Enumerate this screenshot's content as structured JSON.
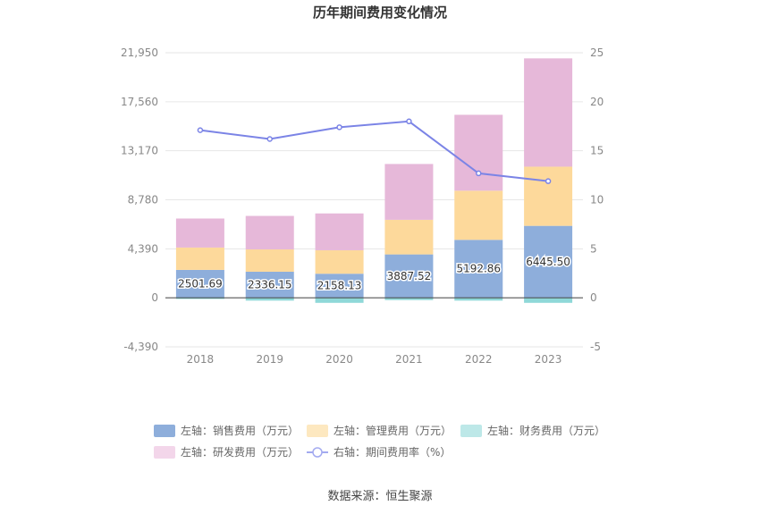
{
  "chart_data": {
    "type": "bar",
    "stacked": true,
    "title": "历年期间费用变化情况",
    "categories": [
      "2018",
      "2019",
      "2020",
      "2021",
      "2022",
      "2023"
    ],
    "left_axis": {
      "ylim": [
        -4390,
        21950
      ],
      "ticks": [
        "21,950",
        "17,560",
        "13,170",
        "8,780",
        "4,390",
        "0",
        "-4,390"
      ]
    },
    "right_axis": {
      "ylim": [
        -5,
        25
      ],
      "ticks": [
        "25",
        "20",
        "15",
        "10",
        "5",
        "0",
        "-5"
      ]
    },
    "series": [
      {
        "name": "左轴：销售费用（万元）",
        "color": "#8eaedb",
        "values": [
          2501.69,
          2336.15,
          2158.13,
          3887.52,
          5192.86,
          6445.5
        ]
      },
      {
        "name": "左轴：管理费用（万元）",
        "color": "#fdd99b",
        "values": [
          2000,
          2000,
          2100,
          3100,
          4400,
          5300
        ]
      },
      {
        "name": "左轴：财务费用（万元）",
        "color": "#8fd8d8",
        "values": [
          -100,
          -250,
          -450,
          -200,
          -250,
          -450
        ]
      },
      {
        "name": "左轴：研发费用（万元）",
        "color": "#e6b8d9",
        "values": [
          2600,
          3000,
          3300,
          5000,
          6800,
          9700
        ]
      }
    ],
    "line": {
      "name": "右轴：期间费用率（%）",
      "color": "#7b84e6",
      "values": [
        17.1,
        16.2,
        17.4,
        18.0,
        12.7,
        11.9
      ]
    },
    "bar_labels": [
      "2501.69",
      "2336.15",
      "2158.13",
      "3887.52",
      "5192.86",
      "6445.50"
    ],
    "legend": [
      {
        "label": "左轴：销售费用（万元）",
        "color": "#8eaedb",
        "kind": "rect"
      },
      {
        "label": "左轴：管理费用（万元）",
        "color": "#fde8c0",
        "kind": "rect"
      },
      {
        "label": "左轴：财务费用（万元）",
        "color": "#bde8e8",
        "kind": "rect"
      },
      {
        "label": "左轴：研发费用（万元）",
        "color": "#f3d6ea",
        "kind": "rect"
      },
      {
        "label": "右轴：期间费用率（%）",
        "color": "#a3aaf0",
        "kind": "line"
      }
    ],
    "source": "数据来源：恒生聚源"
  }
}
